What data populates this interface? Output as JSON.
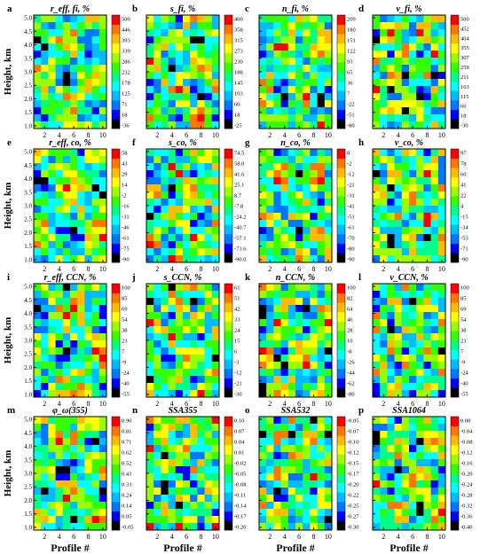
{
  "figure": {
    "ylabel": "Height, km",
    "xlabel": "Profile #",
    "x_ticks": [
      2,
      4,
      6,
      8,
      10
    ],
    "y_ticks": [
      1.0,
      1.5,
      2.0,
      2.5,
      3.0,
      3.5,
      4.0,
      4.5,
      5.0
    ],
    "colormap": [
      "#000000",
      "#0000ff",
      "#0077ff",
      "#00bbff",
      "#00ffff",
      "#00ff88",
      "#33ff00",
      "#99ff00",
      "#ffff00",
      "#ffbb00",
      "#ff7700",
      "#ff0000"
    ]
  },
  "chart_data": [
    {
      "type": "heatmap",
      "panel_letter": "a",
      "title": "r_eff, fi, %",
      "colorbar_ticks": [
        500,
        446,
        393,
        339,
        286,
        232,
        178,
        125,
        71,
        18,
        -36
      ],
      "grid_cols": 10,
      "grid_rows": 16,
      "xlim": [
        0.5,
        10.5
      ],
      "ylim": [
        0.9,
        5.1
      ],
      "pattern_seed": 11
    },
    {
      "type": "heatmap",
      "panel_letter": "b",
      "title": "s_fi, %",
      "colorbar_ticks": [
        400,
        358,
        315,
        273,
        230,
        188,
        145,
        103,
        60,
        18,
        -25
      ],
      "grid_cols": 10,
      "grid_rows": 16,
      "xlim": [
        0.5,
        10.5
      ],
      "ylim": [
        0.9,
        5.1
      ],
      "pattern_seed": 23
    },
    {
      "type": "heatmap",
      "panel_letter": "c",
      "title": "n_fi, %",
      "colorbar_ticks": [
        209,
        180,
        151,
        122,
        93,
        65,
        36,
        7,
        -22,
        -51,
        -80
      ],
      "grid_cols": 10,
      "grid_rows": 16,
      "xlim": [
        0.5,
        10.5
      ],
      "ylim": [
        0.9,
        5.1
      ],
      "pattern_seed": 37
    },
    {
      "type": "heatmap",
      "panel_letter": "d",
      "title": "v_fi, %",
      "colorbar_ticks": [
        500,
        452,
        404,
        355,
        307,
        259,
        211,
        163,
        115,
        66,
        18,
        -30
      ],
      "grid_cols": 10,
      "grid_rows": 16,
      "xlim": [
        0.5,
        10.5
      ],
      "ylim": [
        0.9,
        5.1
      ],
      "pattern_seed": 41
    },
    {
      "type": "heatmap",
      "panel_letter": "e",
      "title": "r_eff, co, %",
      "colorbar_ticks": [
        58,
        43,
        29,
        14,
        -2,
        -16,
        -31,
        -46,
        -61,
        -75,
        -90
      ],
      "grid_cols": 10,
      "grid_rows": 16,
      "xlim": [
        0.5,
        10.5
      ],
      "ylim": [
        0.9,
        5.1
      ],
      "pattern_seed": 53
    },
    {
      "type": "heatmap",
      "panel_letter": "f",
      "title": "s_co, %",
      "colorbar_ticks": [
        "74.5",
        "58.0",
        "41.6",
        "25.1",
        "8.7",
        "-7.8",
        "-24.2",
        "-40.7",
        "-57.1",
        "-73.6",
        "-90.0"
      ],
      "grid_cols": 10,
      "grid_rows": 16,
      "xlim": [
        0.5,
        10.5
      ],
      "ylim": [
        0.9,
        5.1
      ],
      "pattern_seed": 67
    },
    {
      "type": "heatmap",
      "panel_letter": "g",
      "title": "n_co, %",
      "colorbar_ticks": [
        8,
        -2,
        -12,
        -21,
        -31,
        -41,
        -51,
        -61,
        -70,
        -80,
        -90
      ],
      "grid_cols": 10,
      "grid_rows": 16,
      "xlim": [
        0.5,
        10.5
      ],
      "ylim": [
        0.9,
        5.1
      ],
      "pattern_seed": 71
    },
    {
      "type": "heatmap",
      "panel_letter": "h",
      "title": "v_co, %",
      "colorbar_ticks": [
        97,
        78,
        60,
        41,
        22,
        4,
        -15,
        -34,
        -53,
        -71,
        -90
      ],
      "grid_cols": 10,
      "grid_rows": 16,
      "xlim": [
        0.5,
        10.5
      ],
      "ylim": [
        0.9,
        5.1
      ],
      "pattern_seed": 83
    },
    {
      "type": "heatmap",
      "panel_letter": "i",
      "title": "r_eff, CCN, %",
      "colorbar_ticks": [
        100,
        85,
        69,
        54,
        38,
        23,
        7,
        -9,
        -24,
        -40,
        -55
      ],
      "grid_cols": 10,
      "grid_rows": 16,
      "xlim": [
        0.5,
        10.5
      ],
      "ylim": [
        0.9,
        5.1
      ],
      "pattern_seed": 97
    },
    {
      "type": "heatmap",
      "panel_letter": "j",
      "title": "s_CCN, %",
      "colorbar_ticks": [
        61,
        51,
        42,
        33,
        24,
        15,
        6,
        -3,
        -12,
        -21,
        -30
      ],
      "grid_cols": 10,
      "grid_rows": 16,
      "xlim": [
        0.5,
        10.5
      ],
      "ylim": [
        0.9,
        5.1
      ],
      "pattern_seed": 101
    },
    {
      "type": "heatmap",
      "panel_letter": "k",
      "title": "n_CCN, %",
      "colorbar_ticks": [
        100,
        82,
        64,
        46,
        28,
        10,
        -8,
        -26,
        -44,
        -62,
        -80
      ],
      "grid_cols": 10,
      "grid_rows": 16,
      "xlim": [
        0.5,
        10.5
      ],
      "ylim": [
        0.9,
        5.1
      ],
      "pattern_seed": 113
    },
    {
      "type": "heatmap",
      "panel_letter": "l",
      "title": "v_CCN, %",
      "colorbar_ticks": [
        100,
        85,
        69,
        54,
        38,
        23,
        7,
        -9,
        -24,
        -40,
        -55
      ],
      "grid_cols": 10,
      "grid_rows": 16,
      "xlim": [
        0.5,
        10.5
      ],
      "ylim": [
        0.9,
        5.1
      ],
      "pattern_seed": 127
    },
    {
      "type": "heatmap",
      "panel_letter": "m",
      "title": "φ_ω(355)",
      "colorbar_ticks": [
        "0.90",
        "0.81",
        "0.71",
        "0.62",
        "0.52",
        "0.43",
        "0.33",
        "0.24",
        "0.14",
        "0.05",
        "-0.05"
      ],
      "grid_cols": 10,
      "grid_rows": 16,
      "xlim": [
        0.5,
        10.5
      ],
      "ylim": [
        0.9,
        5.1
      ],
      "pattern_seed": 131
    },
    {
      "type": "heatmap",
      "panel_letter": "n",
      "title": "SSA355",
      "colorbar_ticks": [
        "0.10",
        "0.07",
        "0.04",
        "0.01",
        "-0.02",
        "-0.05",
        "-0.08",
        "-0.11",
        "-0.14",
        "-0.17",
        "-0.20"
      ],
      "grid_cols": 10,
      "grid_rows": 16,
      "xlim": [
        0.5,
        10.5
      ],
      "ylim": [
        0.9,
        5.1
      ],
      "pattern_seed": 139
    },
    {
      "type": "heatmap",
      "panel_letter": "o",
      "title": "SSA532",
      "colorbar_ticks": [
        "-0.05",
        "-0.07",
        "-0.10",
        "-0.12",
        "-0.15",
        "-0.17",
        "-0.20",
        "-0.22",
        "-0.25",
        "-0.27",
        "-0.30"
      ],
      "grid_cols": 10,
      "grid_rows": 16,
      "xlim": [
        0.5,
        10.5
      ],
      "ylim": [
        0.9,
        5.1
      ],
      "pattern_seed": 149
    },
    {
      "type": "heatmap",
      "panel_letter": "p",
      "title": "SSA1064",
      "colorbar_ticks": [
        "0.00",
        "-0.04",
        "-0.08",
        "-0.12",
        "-0.16",
        "-0.20",
        "-0.24",
        "-0.28",
        "-0.32",
        "-0.36",
        "-0.40"
      ],
      "grid_cols": 10,
      "grid_rows": 16,
      "xlim": [
        0.5,
        10.5
      ],
      "ylim": [
        0.9,
        5.1
      ],
      "pattern_seed": 157
    }
  ]
}
